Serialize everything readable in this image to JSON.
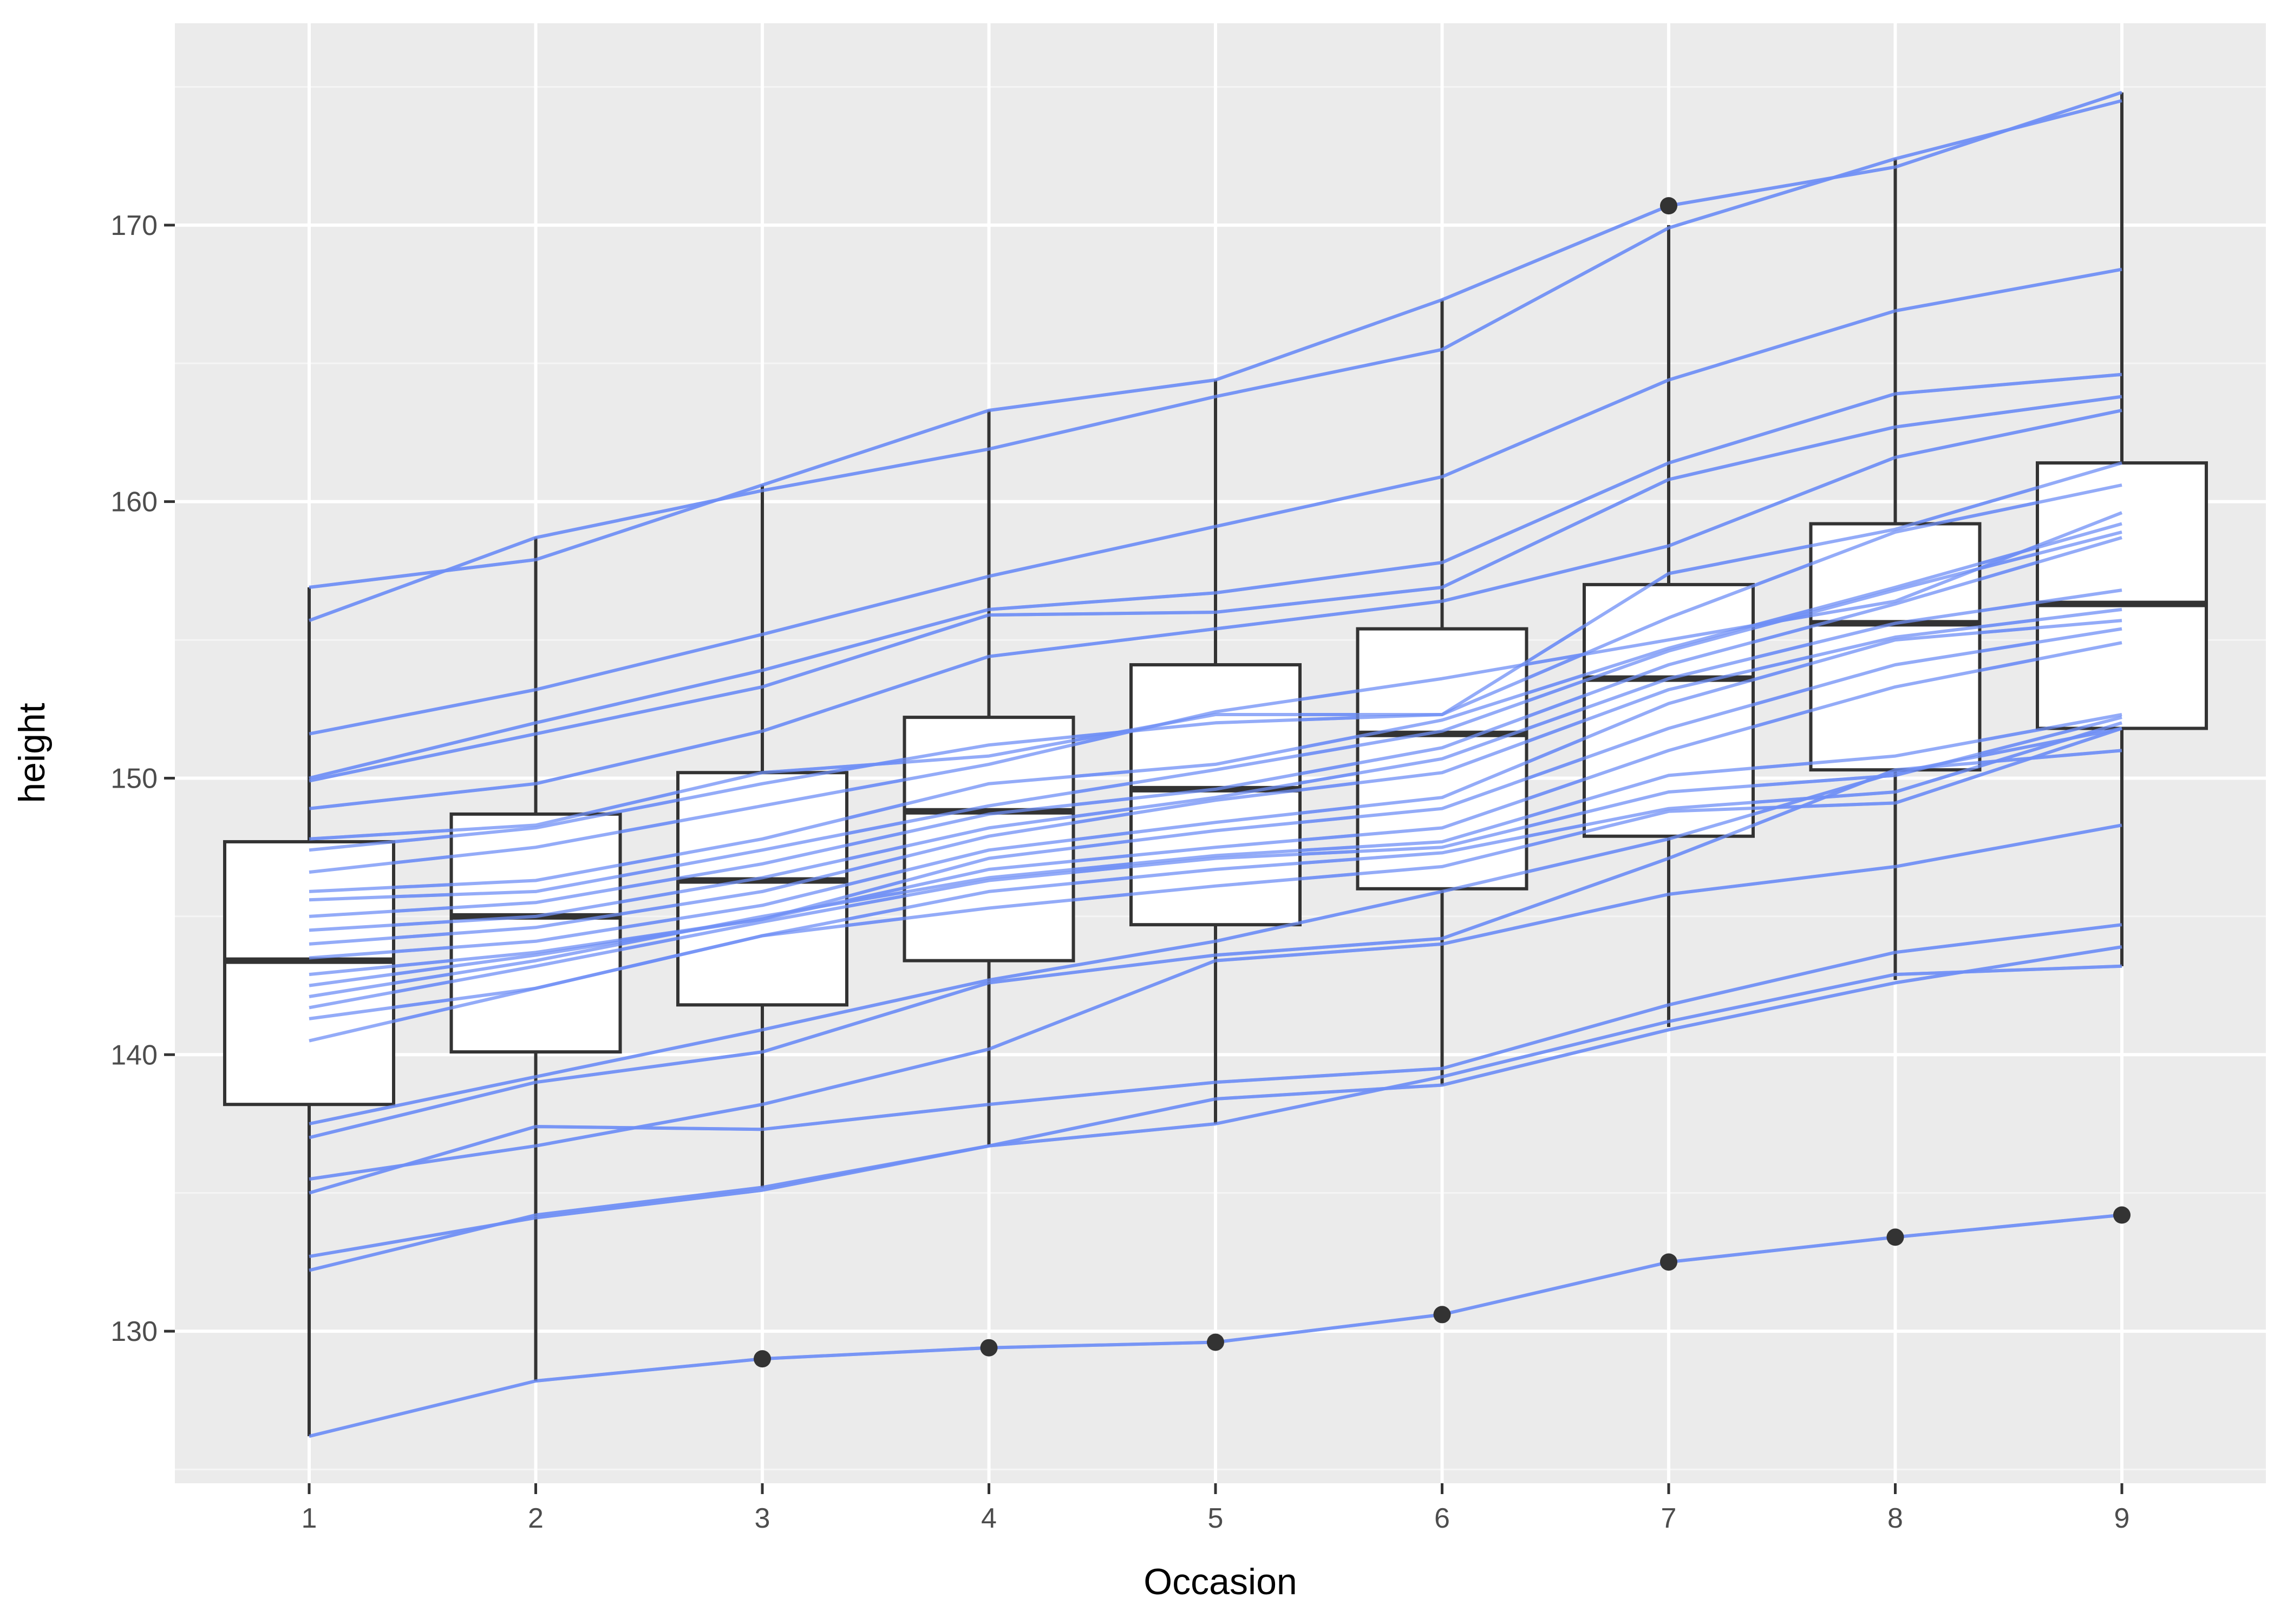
{
  "chart_data": {
    "type": "boxplot",
    "title": "",
    "xlabel": "Occasion",
    "ylabel": "height",
    "categories": [
      "1",
      "2",
      "3",
      "4",
      "5",
      "6",
      "7",
      "8",
      "9"
    ],
    "ylim": [
      124.5,
      177.3
    ],
    "yticks": [
      130,
      140,
      150,
      160,
      170
    ],
    "ytick_labels": [
      "130",
      "140",
      "150",
      "160",
      "170"
    ],
    "grid": true,
    "legend": "none",
    "colors": {
      "panel_background": "#ebebeb",
      "grid_major": "#ffffff",
      "grid_minor": "#f5f5f5",
      "box_fill": "#ffffff",
      "box_line": "#333333",
      "trajectory_line": "#6f8ff5",
      "outlier": "#333333"
    },
    "boxes": [
      {
        "x": "1",
        "ymin": 126.2,
        "q1": 138.2,
        "median": 143.4,
        "q3": 147.7,
        "ymax": 156.9,
        "outliers": []
      },
      {
        "x": "2",
        "ymin": 128.2,
        "q1": 140.1,
        "median": 145.0,
        "q3": 148.7,
        "ymax": 158.7,
        "outliers": []
      },
      {
        "x": "3",
        "ymin": 135.2,
        "q1": 141.8,
        "median": 146.3,
        "q3": 150.2,
        "ymax": 160.6,
        "outliers": [
          129.0
        ]
      },
      {
        "x": "4",
        "ymin": 136.7,
        "q1": 143.4,
        "median": 148.8,
        "q3": 152.2,
        "ymax": 163.3,
        "outliers": [
          129.4
        ]
      },
      {
        "x": "5",
        "ymin": 137.5,
        "q1": 144.7,
        "median": 149.6,
        "q3": 154.1,
        "ymax": 164.4,
        "outliers": [
          129.6
        ]
      },
      {
        "x": "6",
        "ymin": 138.9,
        "q1": 146.0,
        "median": 151.6,
        "q3": 155.4,
        "ymax": 167.3,
        "outliers": [
          130.6
        ]
      },
      {
        "x": "7",
        "ymin": 141.0,
        "q1": 147.9,
        "median": 153.6,
        "q3": 157.0,
        "ymax": 170.0,
        "outliers": [
          132.5,
          170.7
        ]
      },
      {
        "x": "8",
        "ymin": 142.7,
        "q1": 150.3,
        "median": 155.6,
        "q3": 159.2,
        "ymax": 172.4,
        "outliers": [
          133.4
        ]
      },
      {
        "x": "9",
        "ymin": 143.2,
        "q1": 151.8,
        "median": 156.3,
        "q3": 161.4,
        "ymax": 174.8,
        "outliers": [
          134.2
        ]
      }
    ],
    "series": [
      {
        "values": [
          126.2,
          128.2,
          129.0,
          129.4,
          129.6,
          130.6,
          132.5,
          133.4,
          134.2
        ]
      },
      {
        "values": [
          156.9,
          157.9,
          160.6,
          163.3,
          164.4,
          167.3,
          170.7,
          172.1,
          174.8
        ]
      },
      {
        "values": [
          155.7,
          158.7,
          160.4,
          161.9,
          163.8,
          165.5,
          169.9,
          172.4,
          174.5
        ]
      },
      {
        "values": [
          151.6,
          153.2,
          155.2,
          157.3,
          159.1,
          160.9,
          164.4,
          166.9,
          168.4
        ]
      },
      {
        "values": [
          150.0,
          152.0,
          153.9,
          156.1,
          156.7,
          157.8,
          161.4,
          163.9,
          164.6
        ]
      },
      {
        "values": [
          149.9,
          151.6,
          153.3,
          155.9,
          156.0,
          156.9,
          160.8,
          162.7,
          163.8
        ]
      },
      {
        "values": [
          148.9,
          149.8,
          151.7,
          154.4,
          155.4,
          156.4,
          158.4,
          161.6,
          163.3
        ]
      },
      {
        "values": [
          147.8,
          148.3,
          150.2,
          150.8,
          152.3,
          152.3,
          157.4,
          159.0,
          161.4
        ]
      },
      {
        "values": [
          147.4,
          148.2,
          149.8,
          151.2,
          152.0,
          152.3,
          155.8,
          158.9,
          160.6
        ]
      },
      {
        "values": [
          146.6,
          147.5,
          149.0,
          150.5,
          152.4,
          153.6,
          155.0,
          156.4,
          159.6
        ]
      },
      {
        "values": [
          145.9,
          146.3,
          147.8,
          149.8,
          150.5,
          152.1,
          154.7,
          156.9,
          159.2
        ]
      },
      {
        "values": [
          145.6,
          145.9,
          147.4,
          149.0,
          150.3,
          151.7,
          154.6,
          156.8,
          158.9
        ]
      },
      {
        "values": [
          145.0,
          145.5,
          146.9,
          148.7,
          149.6,
          151.1,
          154.1,
          156.3,
          158.7
        ]
      },
      {
        "values": [
          144.5,
          145.0,
          146.4,
          148.2,
          149.3,
          150.7,
          153.6,
          155.6,
          156.8
        ]
      },
      {
        "values": [
          144.0,
          144.6,
          145.9,
          147.9,
          149.2,
          150.2,
          153.2,
          155.1,
          156.1
        ]
      },
      {
        "values": [
          143.5,
          144.1,
          145.4,
          147.4,
          148.4,
          149.3,
          152.7,
          155.0,
          155.7
        ]
      },
      {
        "values": [
          142.9,
          143.7,
          144.9,
          147.1,
          148.1,
          148.9,
          151.8,
          154.1,
          155.4
        ]
      },
      {
        "values": [
          142.5,
          143.6,
          144.9,
          146.7,
          147.5,
          148.2,
          151.0,
          153.3,
          154.9
        ]
      },
      {
        "values": [
          142.1,
          143.4,
          145.0,
          146.4,
          147.2,
          147.7,
          150.1,
          150.8,
          152.3
        ]
      },
      {
        "values": [
          141.7,
          143.2,
          144.8,
          146.3,
          147.1,
          147.5,
          149.5,
          150.1,
          152.2
        ]
      },
      {
        "values": [
          141.3,
          142.4,
          144.3,
          145.9,
          146.7,
          147.3,
          148.9,
          149.5,
          152.0
        ]
      },
      {
        "values": [
          140.5,
          142.4,
          144.3,
          145.3,
          146.1,
          146.8,
          148.8,
          149.1,
          151.8
        ]
      },
      {
        "values": [
          137.5,
          139.2,
          140.9,
          142.7,
          144.1,
          145.9,
          147.8,
          150.2,
          151.8
        ]
      },
      {
        "values": [
          137.0,
          139.0,
          140.1,
          142.6,
          143.6,
          144.2,
          147.1,
          150.3,
          151.0
        ]
      },
      {
        "values": [
          135.5,
          136.7,
          138.2,
          140.2,
          143.4,
          144.0,
          145.8,
          146.8,
          148.3
        ]
      },
      {
        "values": [
          135.0,
          137.4,
          137.3,
          138.2,
          139.0,
          139.5,
          141.8,
          143.7,
          144.7
        ]
      },
      {
        "values": [
          132.7,
          134.1,
          135.1,
          136.7,
          138.4,
          138.9,
          140.9,
          142.6,
          143.9
        ]
      },
      {
        "values": [
          132.2,
          134.2,
          135.2,
          136.7,
          137.5,
          139.2,
          141.2,
          142.9,
          143.2
        ]
      }
    ]
  }
}
